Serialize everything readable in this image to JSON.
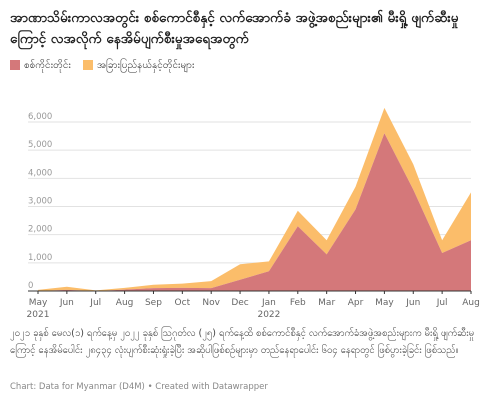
{
  "title": "အာဏာသိမ်းကာလအတွင်း စစ်ကောင်စီနှင့် လက်အောက်ခံ အဖွဲ့အစည်းများ၏ မီးရှို့ ဖျက်ဆီးမှုကြောင့် လအလိုက် နေအိမ်ပျက်စီးမှုအရေအတွက်",
  "note": "၂၀၂၁ ခုနှစ် မေလ(၁) ရက်နေ့မှ ၂၀၂၂ ခုနှစ် ဩဂုတ်လ (၂၅) ရက်နေ့ထိ စစ်ကောင်စီနှင့် လက်အောက်ခံအဖွဲ့အစည်းများက မီးရှို့ ဖျက်ဆီးမှုကြောင့် နေအိမ်ပေါင်း ၂၈၄၃၄ လုံးပျက်စီးဆုံးရှုံးခဲ့ပြီး အဆိုပါဖြစ်စဉ်များမှာ တည်နေရာပေါင်း ၆၀၄ နေရာတွင် ဖြစ်ပွားခဲ့ခြင်း ဖြစ်သည်။",
  "source": "Chart: Data for Myanmar (D4M) • Created with Datawrapper",
  "colors": {
    "sagaing": "#d4787a",
    "other": "#fbbd6a",
    "grid": "#e2e2e2",
    "tick": "#999999"
  },
  "chart_data": {
    "type": "area",
    "stacked": true,
    "x": [
      "May",
      "Jun",
      "Jul",
      "Aug",
      "Sep",
      "Oct",
      "Nov",
      "Dec",
      "Jan",
      "Feb",
      "Mar",
      "Apr",
      "May",
      "Jun",
      "Jul",
      "Aug"
    ],
    "year_labels": [
      {
        "index": 0,
        "label": "2021"
      },
      {
        "index": 8,
        "label": "2022"
      }
    ],
    "series": [
      {
        "name": "စစ်ကိုင်းတိုင်း",
        "values": [
          0,
          40,
          0,
          50,
          100,
          110,
          100,
          400,
          700,
          2300,
          1300,
          2900,
          5600,
          3600,
          1350,
          1800
        ]
      },
      {
        "name": "အခြားပြည်နယ်နှင့်တိုင်းများ",
        "values": [
          40,
          110,
          20,
          60,
          120,
          150,
          250,
          550,
          350,
          550,
          500,
          800,
          900,
          900,
          450,
          1700
        ]
      }
    ],
    "ylim": [
      0,
      6000
    ],
    "yticks": [
      "0",
      "1,000",
      "2,000",
      "3,000",
      "4,000",
      "5,000",
      "6,000"
    ],
    "ytick_values": [
      0,
      1000,
      2000,
      3000,
      4000,
      5000,
      6000
    ],
    "grid": true,
    "legend": "top-left"
  }
}
